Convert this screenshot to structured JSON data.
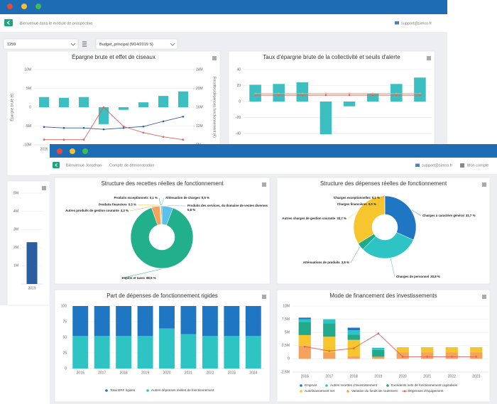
{
  "back_window": {
    "header": {
      "welcome": "Bienvenue dans le module de prospective",
      "email": "support@simco.fr"
    },
    "selects": [
      "1259",
      "Budget_principal (M14/2019 S)"
    ],
    "charts": [
      {
        "type": "bar_line",
        "title": "Épargne brute et effet de ciseaux",
        "ylabel": "Épargne brute (€)",
        "y2label": "Recettes/dépenses fonctionnement (€)",
        "categories": [
          "2016",
          null,
          null,
          null,
          null,
          null,
          null,
          null
        ],
        "ylim": [
          -10000000,
          10000000
        ],
        "yticks": [
          {
            "value": -10000000,
            "label": "-10M"
          },
          {
            "value": -5000000,
            "label": "-5M"
          },
          0,
          {
            "value": 5000000,
            "label": "5M"
          },
          {
            "value": 10000000,
            "label": "10M"
          }
        ],
        "y2lim": [
          8000000,
          24000000
        ],
        "y2ticks": [
          {
            "value": 8000000,
            "label": "8M"
          },
          {
            "value": 12000000,
            "label": "12M"
          },
          {
            "value": 16000000,
            "label": "16M"
          },
          {
            "value": 20000000,
            "label": "20M"
          },
          {
            "value": 24000000,
            "label": "24M"
          }
        ],
        "grid": true,
        "series": [
          {
            "kind": "bar",
            "color": "#3cbfc1",
            "values": [
              2700000,
              2500000,
              2700000,
              -4500000,
              -700000,
              1300000,
              3000000,
              4200000
            ]
          },
          {
            "kind": "line",
            "axis": "y2",
            "color": "#2a5d9f",
            "values": [
              11800000,
              11600000,
              11600000,
              11300000,
              11600000,
              11900000,
              13000000,
              14000000
            ]
          },
          {
            "kind": "line",
            "axis": "y2",
            "color": "#e0605f",
            "values": [
              9100000,
              9100000,
              9100000,
              16000000,
              11900000,
              10600000,
              9700000,
              9100000
            ]
          }
        ]
      },
      {
        "type": "bar_line",
        "title": "Taux d'épargne brute de la collectivité et seuils d'alerte",
        "ylim": [
          -40,
          40
        ],
        "yticks": [
          -40,
          -20,
          0,
          20,
          40
        ],
        "grid": true,
        "series": [
          {
            "kind": "bar",
            "color": "#3cbfc1",
            "values": [
              21,
              22,
              24,
              -41,
              -6,
              10,
              22,
              30
            ]
          },
          {
            "kind": "line",
            "color": "#f4a460",
            "values": [
              10,
              10,
              10,
              10,
              10,
              10,
              10,
              10
            ]
          },
          {
            "kind": "line",
            "color": "#e0605f",
            "values": [
              8,
              8,
              8,
              8,
              8,
              8,
              8,
              8
            ]
          }
        ]
      },
      {
        "type": "bar",
        "categories": [
          "2019"
        ],
        "ylim": [
          0,
          5000000
        ],
        "yticks": [
          {
            "value": 1000000,
            "label": "1M"
          },
          {
            "value": 2000000,
            "label": "2M"
          },
          {
            "value": 3000000,
            "label": "3M"
          },
          {
            "value": 4000000,
            "label": "4M"
          },
          {
            "value": 5000000,
            "label": "5M"
          }
        ],
        "grid": true,
        "series": [
          {
            "kind": "bar",
            "color": "#2a5d9f",
            "values": [
              2300000
            ]
          }
        ]
      }
    ]
  },
  "front_window": {
    "header": {
      "welcome": "Bienvenue Jonathan",
      "account": "Compte de démonstration",
      "email": "support@simco.fr",
      "menu": "Mon compte"
    },
    "charts": [
      {
        "type": "donut",
        "title": "Structure des recettes réelles de fonctionnement",
        "categories": [
          "Produits des services, du domaine de ventes diverses",
          "Impôts et taxes",
          "Autres produits de gestion courante",
          "Produits financiers",
          "Produits exceptionnels",
          "Atténuation de charges"
        ],
        "values": [
          5.8,
          88.9,
          4.3,
          0.5,
          0.1,
          0.5
        ],
        "value_labels": [
          "5,8 %",
          "88,9 %",
          "4,3 %",
          "0,5 %",
          "0,1 %",
          "0,5 %"
        ],
        "colors": [
          "#5bc0eb",
          "#22b08c",
          "#f5a35c",
          "#f7c52e",
          "#1f77c4",
          "#2ec4c4"
        ]
      },
      {
        "type": "donut",
        "title": "Structure des dépenses réelles de fonctionnement",
        "categories": [
          "Charges à caractère général",
          "Charges de personnel",
          "Atténuations de produits",
          "Autres charges de gestion courante",
          "Charges financières",
          "Charges exceptionnelles"
        ],
        "values": [
          31.7,
          30.8,
          3.8,
          33.7,
          0,
          0.1
        ],
        "value_labels": [
          "31,7 %",
          "30,8 %",
          "3,8 %",
          "33,7 %",
          "0,0 %",
          "0,1 %"
        ],
        "colors": [
          "#1f77c4",
          "#2ec4c4",
          "#22a88a",
          "#f7c52e",
          "#f5a35c",
          "#e0605f"
        ]
      },
      {
        "type": "stacked_bar",
        "title": "Part de dépenses de fonctionnement rigides",
        "categories": [
          "2016",
          "2017",
          "2018",
          "2019",
          "2020",
          "2021",
          "2022",
          "2023",
          "2024"
        ],
        "ylim": [
          0,
          100
        ],
        "yticks": [
          0,
          25,
          50,
          75,
          100
        ],
        "grid": true,
        "series": [
          {
            "name": "Total DRF rigides",
            "color": "#1f77c4",
            "values": [
              48,
              48,
              48,
              48,
              36,
              45,
              48,
              48,
              48
            ]
          },
          {
            "name": "Autres dépenses réelles de fonctionnement",
            "color": "#2ec4c4",
            "values": [
              52,
              52,
              52,
              52,
              64,
              55,
              52,
              52,
              52
            ]
          }
        ]
      },
      {
        "type": "stacked_bar",
        "title": "Mode de financement des investissements",
        "categories": [
          "2016",
          "2017",
          "2018",
          "2019",
          "2020",
          "2021",
          "2022",
          "2023"
        ],
        "ylim": [
          -2500000,
          10000000
        ],
        "yticks": [
          {
            "value": -2500000,
            "label": "-2,5M"
          },
          0,
          {
            "value": 2500000,
            "label": "2,5M"
          },
          {
            "value": 5000000,
            "label": "5M"
          },
          {
            "value": 7500000,
            "label": "7,5M"
          },
          {
            "value": 10000000,
            "label": "10M"
          }
        ],
        "grid": true,
        "series": [
          {
            "name": "Emprunt",
            "color": "#1f77c4",
            "values": [
              300000,
              0,
              500000,
              0,
              0,
              0,
              0,
              0
            ]
          },
          {
            "name": "Autres recettes d'investissement",
            "color": "#2ec4c4",
            "values": [
              500000,
              800000,
              800000,
              400000,
              0,
              0,
              0,
              0
            ]
          },
          {
            "name": "Excédents nets de fonctionnement capitalisés",
            "color": "#22a88a",
            "values": [
              2500000,
              2500000,
              1000000,
              1300000,
              0,
              0,
              0,
              0
            ]
          },
          {
            "name": "Autofinancement net",
            "color": "#f7c52e",
            "values": [
              2000000,
              3000000,
              3100000,
              0,
              1000000,
              1000000,
              1000000,
              1000000
            ]
          },
          {
            "name": "Variation du fonds de roulement",
            "color": "#f5a35c",
            "values": [
              2500000,
              1200000,
              500000,
              400000,
              1200000,
              1200000,
              1200000,
              1200000
            ]
          },
          {
            "name": "Dépenses d'équipement",
            "kind": "line",
            "color": "#e0605f",
            "values": [
              2300000,
              1500000,
              2000000,
              4800000,
              400000,
              400000,
              400000,
              400000
            ]
          }
        ]
      }
    ]
  }
}
